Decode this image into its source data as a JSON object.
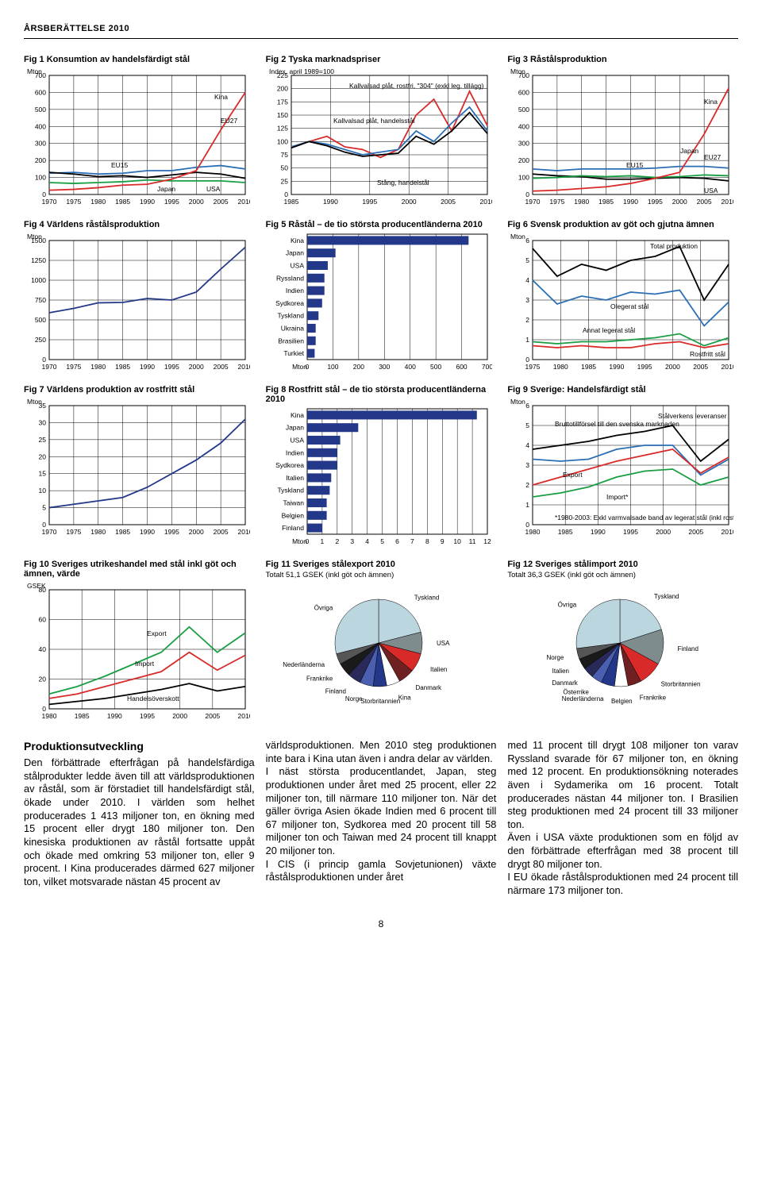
{
  "header": "ÅRSBERÄTTELSE 2010",
  "pagenum": "8",
  "fig1": {
    "title": "Fig 1  Konsumtion av handelsfärdigt stål",
    "yunit": "Mton",
    "yticks": [
      0,
      100,
      200,
      300,
      400,
      500,
      600,
      700
    ],
    "xticks": [
      1970,
      1975,
      1980,
      1985,
      1990,
      1995,
      2000,
      2005,
      2010
    ],
    "labels": {
      "EU15": "EU15",
      "EU27": "EU27",
      "Japan": "Japan",
      "USA": "USA",
      "Kina": "Kina"
    },
    "series": {
      "EU15": {
        "color": "#2a6fb5",
        "pts": [
          125,
          130,
          120,
          125,
          140,
          140,
          160,
          170,
          150
        ]
      },
      "USA": {
        "color": "#000000",
        "pts": [
          130,
          120,
          105,
          110,
          100,
          115,
          130,
          120,
          95
        ]
      },
      "Japan": {
        "color": "#1a9e44",
        "pts": [
          70,
          65,
          70,
          75,
          85,
          80,
          80,
          80,
          70
        ]
      },
      "Kina": {
        "color": "#d92a2a",
        "pts": [
          25,
          30,
          40,
          55,
          60,
          90,
          140,
          380,
          600
        ]
      }
    }
  },
  "fig2": {
    "title": "Fig 2  Tyska marknadspriser",
    "yunit": "Index, april 1989=100",
    "yticks": [
      0,
      25,
      50,
      75,
      100,
      125,
      150,
      175,
      200,
      225
    ],
    "xticks": [
      1985,
      1990,
      1995,
      2000,
      2005,
      2010
    ],
    "labels": {
      "a": "Kallvalsad plåt, rostfri, \"304\" (exkl leg. tillägg)",
      "b": "Kallvalsad plåt, handelsstål",
      "c": "Stång, handelstål"
    },
    "series": {
      "a": {
        "color": "#d92a2a",
        "pts": [
          90,
          100,
          110,
          90,
          85,
          70,
          85,
          150,
          180,
          120,
          195,
          130
        ]
      },
      "b": {
        "color": "#2a6fb5",
        "pts": [
          90,
          100,
          95,
          85,
          75,
          80,
          85,
          120,
          100,
          135,
          165,
          120
        ]
      },
      "c": {
        "color": "#000000",
        "pts": [
          88,
          100,
          92,
          80,
          72,
          75,
          78,
          110,
          95,
          120,
          155,
          115
        ]
      }
    }
  },
  "fig3": {
    "title": "Fig 3  Råstålsproduktion",
    "yunit": "Mton",
    "yticks": [
      0,
      100,
      200,
      300,
      400,
      500,
      600,
      700
    ],
    "xticks": [
      1970,
      1975,
      1980,
      1985,
      1990,
      1995,
      2000,
      2005,
      2010
    ],
    "labels": {
      "EU15": "EU15",
      "EU27": "EU27",
      "Japan": "Japan",
      "USA": "USA",
      "Kina": "Kina"
    },
    "series": {
      "EU15": {
        "color": "#2a6fb5",
        "pts": [
          150,
          140,
          150,
          150,
          150,
          155,
          165,
          165,
          155
        ]
      },
      "USA": {
        "color": "#000000",
        "pts": [
          120,
          110,
          105,
          90,
          90,
          95,
          100,
          95,
          80
        ]
      },
      "Japan": {
        "color": "#1a9e44",
        "pts": [
          95,
          100,
          110,
          105,
          110,
          100,
          105,
          115,
          110
        ]
      },
      "Kina": {
        "color": "#d92a2a",
        "pts": [
          20,
          25,
          35,
          45,
          65,
          95,
          130,
          355,
          625
        ]
      }
    }
  },
  "fig4": {
    "title": "Fig 4  Världens råstålsproduktion",
    "yunit": "Mton",
    "yticks": [
      0,
      250,
      500,
      750,
      1000,
      1250,
      1500
    ],
    "xticks": [
      1970,
      1975,
      1980,
      1985,
      1990,
      1995,
      2000,
      2005,
      2010
    ],
    "series": {
      "w": {
        "color": "#24388a",
        "pts": [
          590,
          645,
          715,
          720,
          770,
          750,
          850,
          1140,
          1415
        ]
      }
    }
  },
  "fig5": {
    "title": "Fig 5  Råstål – de tio största producentländerna 2010",
    "xunit": "Mton",
    "xticks": [
      0,
      100,
      200,
      300,
      400,
      500,
      600,
      700
    ],
    "bars": [
      {
        "label": "Kina",
        "val": 627
      },
      {
        "label": "Japan",
        "val": 110
      },
      {
        "label": "USA",
        "val": 80
      },
      {
        "label": "Ryssland",
        "val": 67
      },
      {
        "label": "Indien",
        "val": 67
      },
      {
        "label": "Sydkorea",
        "val": 58
      },
      {
        "label": "Tyskland",
        "val": 44
      },
      {
        "label": "Ukraina",
        "val": 33
      },
      {
        "label": "Brasilien",
        "val": 33
      },
      {
        "label": "Turkiet",
        "val": 29
      }
    ],
    "bar_color": "#24388a"
  },
  "fig6": {
    "title": "Fig 6  Svensk produktion av göt och gjutna ämnen",
    "yunit": "Mton",
    "yticks": [
      0,
      1,
      2,
      3,
      4,
      5,
      6
    ],
    "xticks": [
      1975,
      1980,
      1985,
      1990,
      1995,
      2000,
      2005,
      2010
    ],
    "labels": {
      "tot": "Total produktion",
      "ol": "Olegerat stål",
      "al": "Annat legerat stål",
      "r": "Rostfritt stål"
    },
    "series": {
      "tot": {
        "color": "#000000",
        "pts": [
          5.6,
          4.2,
          4.8,
          4.5,
          5.0,
          5.2,
          5.7,
          3.0,
          4.8
        ]
      },
      "ol": {
        "color": "#2a6fb5",
        "pts": [
          4.0,
          2.8,
          3.2,
          3.0,
          3.4,
          3.3,
          3.5,
          1.7,
          2.9
        ]
      },
      "al": {
        "color": "#1a9e44",
        "pts": [
          0.9,
          0.8,
          0.9,
          0.9,
          1.0,
          1.1,
          1.3,
          0.7,
          1.1
        ]
      },
      "r": {
        "color": "#d92a2a",
        "pts": [
          0.7,
          0.6,
          0.7,
          0.6,
          0.6,
          0.8,
          0.9,
          0.6,
          0.8
        ]
      }
    }
  },
  "fig7": {
    "title": "Fig 7  Världens produktion av rostfritt stål",
    "yunit": "Mton",
    "yticks": [
      0,
      5,
      10,
      15,
      20,
      25,
      30,
      35
    ],
    "xticks": [
      1970,
      1975,
      1980,
      1985,
      1990,
      1995,
      2000,
      2005,
      2010
    ],
    "series": {
      "w": {
        "color": "#24388a",
        "pts": [
          5,
          6,
          7,
          8,
          11,
          15,
          19,
          24,
          31
        ]
      }
    }
  },
  "fig8": {
    "title": "Fig 8  Rostfritt stål – de tio största producentländerna 2010",
    "xunit": "Mton",
    "xticks": [
      0,
      1,
      2,
      3,
      4,
      5,
      6,
      7,
      8,
      9,
      10,
      11,
      12
    ],
    "bars": [
      {
        "label": "Kina",
        "val": 11.3
      },
      {
        "label": "Japan",
        "val": 3.4
      },
      {
        "label": "USA",
        "val": 2.2
      },
      {
        "label": "Indien",
        "val": 2.0
      },
      {
        "label": "Sydkorea",
        "val": 2.0
      },
      {
        "label": "Italien",
        "val": 1.6
      },
      {
        "label": "Tyskland",
        "val": 1.5
      },
      {
        "label": "Taiwan",
        "val": 1.3
      },
      {
        "label": "Belgien",
        "val": 1.3
      },
      {
        "label": "Finland",
        "val": 1.0
      }
    ],
    "bar_color": "#24388a"
  },
  "fig9": {
    "title": "Fig 9  Sverige: Handelsfärdigt stål",
    "yunit": "Mton",
    "yticks": [
      0,
      1,
      2,
      3,
      4,
      5,
      6
    ],
    "xticks": [
      1980,
      1985,
      1990,
      1995,
      2000,
      2005,
      2010
    ],
    "labels": {
      "b": "Bruttotillförsel till den svenska marknaden",
      "s": "Stålverkens leveranser",
      "e": "Export",
      "i": "Import*",
      "note": "*1980-2003: Exkl varmvalsade band av legerat stål (inkl rostfritt)"
    },
    "series": {
      "b": {
        "color": "#2a6fb5",
        "pts": [
          3.3,
          3.2,
          3.3,
          3.8,
          4.0,
          4.0,
          2.5,
          3.3
        ]
      },
      "s": {
        "color": "#000000",
        "pts": [
          3.8,
          4.0,
          4.2,
          4.5,
          4.7,
          5.0,
          3.2,
          4.3
        ]
      },
      "e": {
        "color": "#d92a2a",
        "pts": [
          2.0,
          2.4,
          2.8,
          3.2,
          3.5,
          3.8,
          2.6,
          3.4
        ]
      },
      "i": {
        "color": "#1a9e44",
        "pts": [
          1.4,
          1.6,
          1.9,
          2.4,
          2.7,
          2.8,
          2.0,
          2.4
        ]
      }
    }
  },
  "fig10": {
    "title": "Fig 10  Sveriges utrikeshandel med stål inkl göt och ämnen, värde",
    "yunit": "GSEK",
    "yticks": [
      0,
      20,
      40,
      60,
      80
    ],
    "xticks": [
      1980,
      1985,
      1990,
      1995,
      2000,
      2005,
      2010
    ],
    "labels": {
      "e": "Export",
      "i": "Import",
      "h": "Handelsöverskott"
    },
    "series": {
      "e": {
        "color": "#1a9e44",
        "pts": [
          10,
          15,
          22,
          30,
          38,
          55,
          38,
          51
        ]
      },
      "i": {
        "color": "#d92a2a",
        "pts": [
          7,
          10,
          15,
          20,
          25,
          38,
          26,
          36
        ]
      },
      "h": {
        "color": "#000000",
        "pts": [
          3,
          5,
          7,
          10,
          13,
          17,
          12,
          15
        ]
      }
    }
  },
  "fig11": {
    "title": "Fig 11  Sveriges stålexport 2010",
    "subtitle": "Totalt 51,1 GSEK (inkl göt och ämnen)",
    "slices": [
      {
        "label": "Tyskland",
        "val": 21,
        "color": "#bcd6e0"
      },
      {
        "label": "USA",
        "val": 8,
        "color": "#7f8c8d"
      },
      {
        "label": "Italien",
        "val": 7,
        "color": "#d92a2a"
      },
      {
        "label": "Danmark",
        "val": 6,
        "color": "#6f2020"
      },
      {
        "label": "Kina",
        "val": 5,
        "color": "#ffffff"
      },
      {
        "label": "Storbritannien",
        "val": 5,
        "color": "#24388a"
      },
      {
        "label": "Norge",
        "val": 5,
        "color": "#4a5fb0"
      },
      {
        "label": "Finland",
        "val": 5,
        "color": "#2a2a5a"
      },
      {
        "label": "Frankrike",
        "val": 5,
        "color": "#1a1a1a"
      },
      {
        "label": "Nederländerna",
        "val": 4,
        "color": "#555555"
      },
      {
        "label": "Övriga",
        "val": 29,
        "color": "#bcd6e0"
      }
    ]
  },
  "fig12": {
    "title": "Fig 12  Sveriges stålimport 2010",
    "subtitle": "Totalt 36,3 GSEK (inkl göt och ämnen)",
    "slices": [
      {
        "label": "Tyskland",
        "val": 20,
        "color": "#bcd6e0"
      },
      {
        "label": "Finland",
        "val": 13,
        "color": "#7f8c8d"
      },
      {
        "label": "Storbritannien",
        "val": 9,
        "color": "#d92a2a"
      },
      {
        "label": "Frankrike",
        "val": 5,
        "color": "#6f2020"
      },
      {
        "label": "Belgien",
        "val": 5,
        "color": "#ffffff"
      },
      {
        "label": "Nederländerna",
        "val": 5,
        "color": "#24388a"
      },
      {
        "label": "Österrike",
        "val": 4,
        "color": "#4a5fb0"
      },
      {
        "label": "Danmark",
        "val": 4,
        "color": "#2a2a5a"
      },
      {
        "label": "Italien",
        "val": 4,
        "color": "#1a1a1a"
      },
      {
        "label": "Norge",
        "val": 4,
        "color": "#555555"
      },
      {
        "label": "Övriga",
        "val": 27,
        "color": "#bcd6e0"
      }
    ]
  },
  "body": {
    "heading": "Produktionsutveckling",
    "c1": "Den förbättrade efterfrågan på handelsfärdiga stålprodukter ledde även till att världsproduktionen av råstål, som är förstadiet till handelsfärdigt stål, ökade under 2010. I världen som helhet producerades 1 413 miljoner ton, en ökning med 15 procent eller drygt 180 miljoner ton. Den kinesiska produktionen av råstål fortsatte uppåt och ökade med omkring 53 miljoner ton, eller 9 procent. I Kina producerades därmed 627 miljoner ton, vilket motsvarade nästan 45 procent av",
    "c2": "världsproduktionen. Men 2010 steg produktionen inte bara i Kina utan även i andra delar av världen.\nI näst största producentlandet, Japan, steg produktionen under året med 25 procent, eller 22 miljoner ton, till närmare 110 miljoner ton. När det gäller övriga Asien ökade Indien med 6 procent till 67 miljoner ton, Sydkorea med 20 procent till 58 miljoner ton och Taiwan med 24 procent till knappt 20 miljoner ton.\nI CIS (i princip gamla Sovjetunionen) växte råstålsproduktionen under året",
    "c3": "med 11 procent till drygt 108 miljoner ton varav Ryssland svarade för 67 miljoner ton, en ökning med 12 procent. En produktionsökning noterades även i Sydamerika om 16 procent. Totalt producerades nästan 44 miljoner ton. I Brasilien steg produktionen med 24 procent till 33 miljoner ton.\nÄven i USA växte produktionen som en följd av den förbättrade efterfrågan med 38 procent till drygt 80 miljoner ton.\nI EU ökade råstålsproduktionen med 24 procent till närmare 173 miljoner ton."
  }
}
